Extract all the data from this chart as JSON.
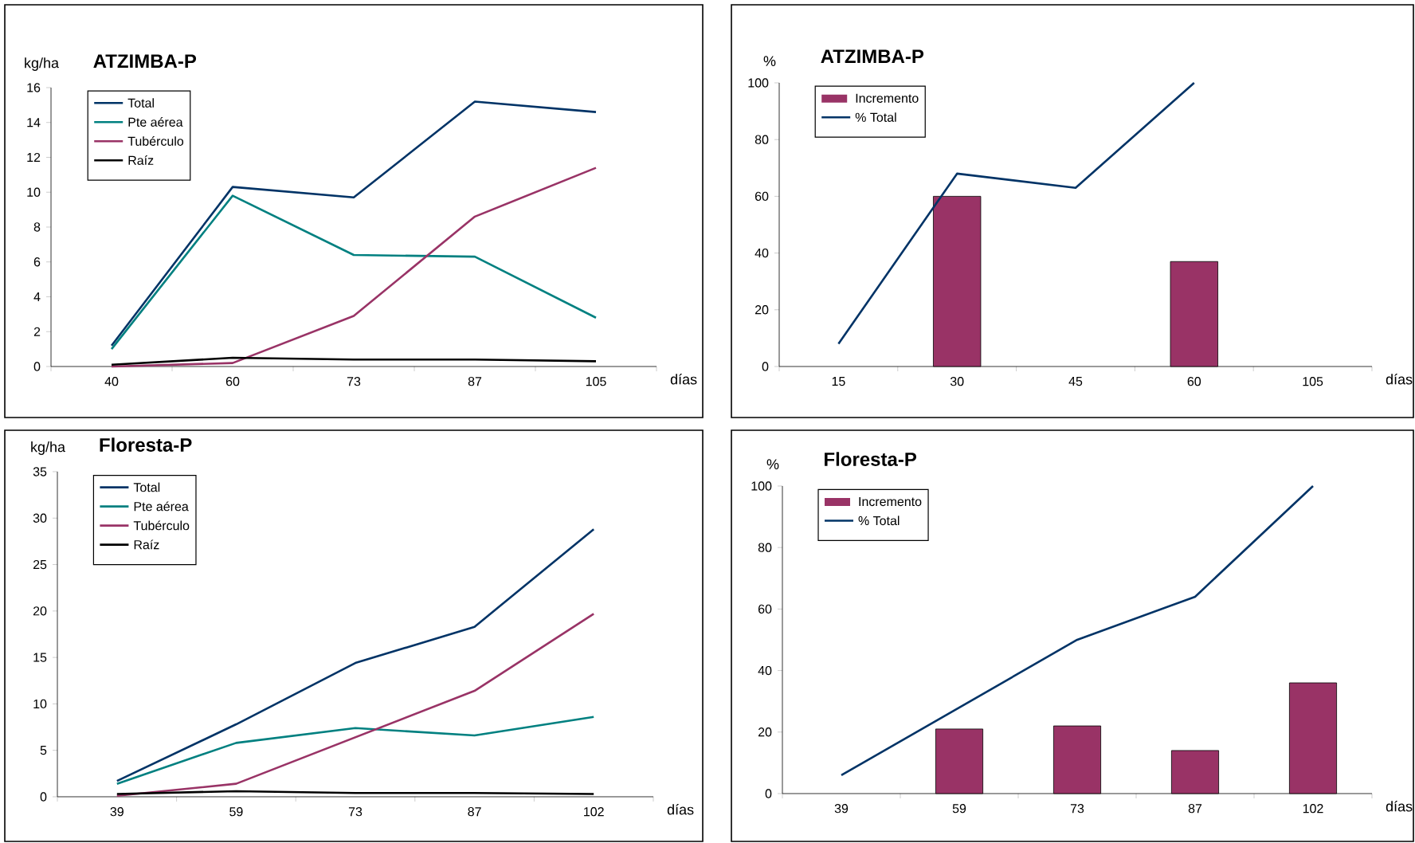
{
  "chart_data": [
    {
      "type": "line",
      "title": "ATZIMBA-P",
      "xlabel": "días",
      "ylabel": "kg/ha",
      "categories": [
        "40",
        "60",
        "73",
        "87",
        "105"
      ],
      "ylim": [
        0,
        16
      ],
      "yticks": [
        0,
        2,
        4,
        6,
        8,
        10,
        12,
        14,
        16
      ],
      "legend": "top left",
      "series": [
        {
          "name": "Total",
          "color": "#003366",
          "values": [
            1.2,
            10.3,
            9.7,
            15.2,
            14.6
          ]
        },
        {
          "name": "Pte aérea",
          "color": "#008080",
          "values": [
            1.0,
            9.8,
            6.4,
            6.3,
            2.8
          ]
        },
        {
          "name": "Tubérculo",
          "color": "#993366",
          "values": [
            0.0,
            0.2,
            2.9,
            8.6,
            11.4
          ]
        },
        {
          "name": "Raíz",
          "color": "#000000",
          "values": [
            0.1,
            0.5,
            0.4,
            0.4,
            0.3
          ]
        }
      ]
    },
    {
      "type": "bar",
      "title": "ATZIMBA-P",
      "xlabel": "días",
      "ylabel": "%",
      "categories": [
        "15",
        "30",
        "45",
        "60",
        "105"
      ],
      "ylim": [
        0,
        100
      ],
      "yticks": [
        0,
        20,
        40,
        60,
        80,
        100
      ],
      "legend": "top left",
      "series": [
        {
          "name": "Incremento",
          "type": "bar",
          "color": "#993366",
          "values": [
            null,
            60,
            null,
            37,
            null
          ]
        },
        {
          "name": "% Total",
          "type": "line",
          "color": "#003366",
          "values": [
            8,
            68,
            63,
            100,
            null
          ]
        }
      ]
    },
    {
      "type": "line",
      "title": "Floresta-P",
      "xlabel": "días",
      "ylabel": "kg/ha",
      "categories": [
        "39",
        "59",
        "73",
        "87",
        "102"
      ],
      "ylim": [
        0,
        35
      ],
      "yticks": [
        0,
        5,
        10,
        15,
        20,
        25,
        30,
        35
      ],
      "legend": "top left",
      "series": [
        {
          "name": "Total",
          "color": "#003366",
          "values": [
            1.7,
            7.8,
            14.4,
            18.3,
            28.8
          ]
        },
        {
          "name": "Pte aérea",
          "color": "#008080",
          "values": [
            1.4,
            5.8,
            7.4,
            6.6,
            8.6
          ]
        },
        {
          "name": "Tubérculo",
          "color": "#993366",
          "values": [
            0.1,
            1.4,
            6.4,
            11.4,
            19.7
          ]
        },
        {
          "name": "Raíz",
          "color": "#000000",
          "values": [
            0.3,
            0.6,
            0.4,
            0.4,
            0.3
          ]
        }
      ]
    },
    {
      "type": "bar",
      "title": "Floresta-P",
      "xlabel": "días",
      "ylabel": "%",
      "categories": [
        "39",
        "59",
        "73",
        "87",
        "102"
      ],
      "ylim": [
        0,
        100
      ],
      "yticks": [
        0,
        20,
        40,
        60,
        80,
        100
      ],
      "legend": "top left",
      "series": [
        {
          "name": "Incremento",
          "type": "bar",
          "color": "#993366",
          "values": [
            null,
            21,
            22,
            14,
            36
          ]
        },
        {
          "name": "% Total",
          "type": "line",
          "color": "#003366",
          "values": [
            6,
            28,
            50,
            64,
            100
          ]
        }
      ]
    }
  ]
}
